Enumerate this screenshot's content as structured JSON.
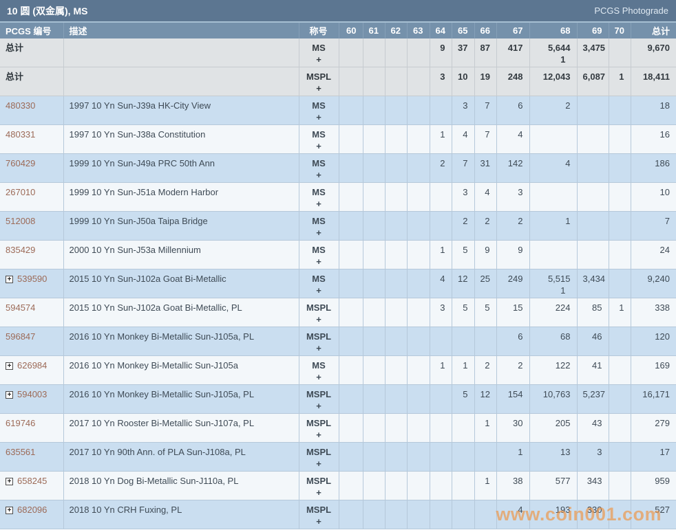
{
  "title_bar": {
    "title": "10 圆 (双金属), MS",
    "right_label": "PCGS Photograde"
  },
  "icons": {
    "expand_plus": "+"
  },
  "watermark": "www.coin001.com",
  "table": {
    "headers": {
      "pcgs_no": "PCGS 编号",
      "description": "描述",
      "designation": "称号",
      "grades": [
        "60",
        "61",
        "62",
        "63",
        "64",
        "65",
        "66",
        "67",
        "68",
        "69",
        "70"
      ],
      "total": "总计"
    },
    "rows": [
      {
        "pcgs_no": "总计",
        "is_total": true,
        "expandable": false,
        "row_style": "row-total",
        "description": "",
        "designation": "MS",
        "designation_plus": "+",
        "grades": [
          "",
          "",
          "",
          "",
          "9",
          "37",
          "87",
          "417",
          "5,644",
          "3,475",
          ""
        ],
        "plus_grades": [
          "",
          "",
          "",
          "",
          "",
          "",
          "",
          "",
          "1",
          "",
          ""
        ],
        "total": "9,670"
      },
      {
        "pcgs_no": "总计",
        "is_total": true,
        "expandable": false,
        "row_style": "row-total",
        "description": "",
        "designation": "MSPL",
        "designation_plus": "+",
        "grades": [
          "",
          "",
          "",
          "",
          "3",
          "10",
          "19",
          "248",
          "12,043",
          "6,087",
          "1"
        ],
        "plus_grades": [
          "",
          "",
          "",
          "",
          "",
          "",
          "",
          "",
          "",
          "",
          ""
        ],
        "total": "18,411"
      },
      {
        "pcgs_no": "480330",
        "is_total": false,
        "expandable": false,
        "row_style": "row-blue",
        "description": "1997 10 Yn Sun-J39a HK-City View",
        "designation": "MS",
        "designation_plus": "+",
        "grades": [
          "",
          "",
          "",
          "",
          "",
          "3",
          "7",
          "6",
          "2",
          "",
          ""
        ],
        "plus_grades": [
          "",
          "",
          "",
          "",
          "",
          "",
          "",
          "",
          "",
          "",
          ""
        ],
        "total": "18"
      },
      {
        "pcgs_no": "480331",
        "is_total": false,
        "expandable": false,
        "row_style": "row-white",
        "description": "1997 10 Yn Sun-J38a Constitution",
        "designation": "MS",
        "designation_plus": "+",
        "grades": [
          "",
          "",
          "",
          "",
          "1",
          "4",
          "7",
          "4",
          "",
          "",
          ""
        ],
        "plus_grades": [
          "",
          "",
          "",
          "",
          "",
          "",
          "",
          "",
          "",
          "",
          ""
        ],
        "total": "16"
      },
      {
        "pcgs_no": "760429",
        "is_total": false,
        "expandable": false,
        "row_style": "row-blue",
        "description": "1999 10 Yn Sun-J49a PRC 50th Ann",
        "designation": "MS",
        "designation_plus": "+",
        "grades": [
          "",
          "",
          "",
          "",
          "2",
          "7",
          "31",
          "142",
          "4",
          "",
          ""
        ],
        "plus_grades": [
          "",
          "",
          "",
          "",
          "",
          "",
          "",
          "",
          "",
          "",
          ""
        ],
        "total": "186"
      },
      {
        "pcgs_no": "267010",
        "is_total": false,
        "expandable": false,
        "row_style": "row-white",
        "description": "1999 10 Yn Sun-J51a Modern Harbor",
        "designation": "MS",
        "designation_plus": "+",
        "grades": [
          "",
          "",
          "",
          "",
          "",
          "3",
          "4",
          "3",
          "",
          "",
          ""
        ],
        "plus_grades": [
          "",
          "",
          "",
          "",
          "",
          "",
          "",
          "",
          "",
          "",
          ""
        ],
        "total": "10"
      },
      {
        "pcgs_no": "512008",
        "is_total": false,
        "expandable": false,
        "row_style": "row-blue",
        "description": "1999 10 Yn Sun-J50a Taipa Bridge",
        "designation": "MS",
        "designation_plus": "+",
        "grades": [
          "",
          "",
          "",
          "",
          "",
          "2",
          "2",
          "2",
          "1",
          "",
          ""
        ],
        "plus_grades": [
          "",
          "",
          "",
          "",
          "",
          "",
          "",
          "",
          "",
          "",
          ""
        ],
        "total": "7"
      },
      {
        "pcgs_no": "835429",
        "is_total": false,
        "expandable": false,
        "row_style": "row-white",
        "description": "2000 10 Yn Sun-J53a Millennium",
        "designation": "MS",
        "designation_plus": "+",
        "grades": [
          "",
          "",
          "",
          "",
          "1",
          "5",
          "9",
          "9",
          "",
          "",
          ""
        ],
        "plus_grades": [
          "",
          "",
          "",
          "",
          "",
          "",
          "",
          "",
          "",
          "",
          ""
        ],
        "total": "24"
      },
      {
        "pcgs_no": "539590",
        "is_total": false,
        "expandable": true,
        "row_style": "row-blue",
        "description": "2015 10 Yn Sun-J102a Goat Bi-Metallic",
        "designation": "MS",
        "designation_plus": "+",
        "grades": [
          "",
          "",
          "",
          "",
          "4",
          "12",
          "25",
          "249",
          "5,515",
          "3,434",
          ""
        ],
        "plus_grades": [
          "",
          "",
          "",
          "",
          "",
          "",
          "",
          "",
          "1",
          "",
          ""
        ],
        "total": "9,240"
      },
      {
        "pcgs_no": "594574",
        "is_total": false,
        "expandable": false,
        "row_style": "row-white",
        "description": "2015 10 Yn Sun-J102a Goat Bi-Metallic, PL",
        "designation": "MSPL",
        "designation_plus": "+",
        "grades": [
          "",
          "",
          "",
          "",
          "3",
          "5",
          "5",
          "15",
          "224",
          "85",
          "1"
        ],
        "plus_grades": [
          "",
          "",
          "",
          "",
          "",
          "",
          "",
          "",
          "",
          "",
          ""
        ],
        "total": "338"
      },
      {
        "pcgs_no": "596847",
        "is_total": false,
        "expandable": false,
        "row_style": "row-blue",
        "description": "2016 10 Yn Monkey Bi-Metallic Sun-J105a, PL",
        "designation": "MSPL",
        "designation_plus": "+",
        "grades": [
          "",
          "",
          "",
          "",
          "",
          "",
          "",
          "6",
          "68",
          "46",
          ""
        ],
        "plus_grades": [
          "",
          "",
          "",
          "",
          "",
          "",
          "",
          "",
          "",
          "",
          ""
        ],
        "total": "120"
      },
      {
        "pcgs_no": "626984",
        "is_total": false,
        "expandable": true,
        "row_style": "row-white",
        "description": "2016 10 Yn Monkey Bi-Metallic Sun-J105a",
        "designation": "MS",
        "designation_plus": "+",
        "grades": [
          "",
          "",
          "",
          "",
          "1",
          "1",
          "2",
          "2",
          "122",
          "41",
          ""
        ],
        "plus_grades": [
          "",
          "",
          "",
          "",
          "",
          "",
          "",
          "",
          "",
          "",
          ""
        ],
        "total": "169"
      },
      {
        "pcgs_no": "594003",
        "is_total": false,
        "expandable": true,
        "row_style": "row-blue",
        "description": "2016 10 Yn Monkey Bi-Metallic Sun-J105a, PL",
        "designation": "MSPL",
        "designation_plus": "+",
        "grades": [
          "",
          "",
          "",
          "",
          "",
          "5",
          "12",
          "154",
          "10,763",
          "5,237",
          ""
        ],
        "plus_grades": [
          "",
          "",
          "",
          "",
          "",
          "",
          "",
          "",
          "",
          "",
          ""
        ],
        "total": "16,171"
      },
      {
        "pcgs_no": "619746",
        "is_total": false,
        "expandable": false,
        "row_style": "row-white",
        "description": "2017 10 Yn Rooster Bi-Metallic Sun-J107a, PL",
        "designation": "MSPL",
        "designation_plus": "+",
        "grades": [
          "",
          "",
          "",
          "",
          "",
          "",
          "1",
          "30",
          "205",
          "43",
          ""
        ],
        "plus_grades": [
          "",
          "",
          "",
          "",
          "",
          "",
          "",
          "",
          "",
          "",
          ""
        ],
        "total": "279"
      },
      {
        "pcgs_no": "635561",
        "is_total": false,
        "expandable": false,
        "row_style": "row-blue",
        "description": "2017 10 Yn 90th Ann. of PLA Sun-J108a, PL",
        "designation": "MSPL",
        "designation_plus": "+",
        "grades": [
          "",
          "",
          "",
          "",
          "",
          "",
          "",
          "1",
          "13",
          "3",
          ""
        ],
        "plus_grades": [
          "",
          "",
          "",
          "",
          "",
          "",
          "",
          "",
          "",
          "",
          ""
        ],
        "total": "17"
      },
      {
        "pcgs_no": "658245",
        "is_total": false,
        "expandable": true,
        "row_style": "row-white",
        "description": "2018 10 Yn Dog Bi-Metallic Sun-J110a, PL",
        "designation": "MSPL",
        "designation_plus": "+",
        "grades": [
          "",
          "",
          "",
          "",
          "",
          "",
          "1",
          "38",
          "577",
          "343",
          ""
        ],
        "plus_grades": [
          "",
          "",
          "",
          "",
          "",
          "",
          "",
          "",
          "",
          "",
          ""
        ],
        "total": "959"
      },
      {
        "pcgs_no": "682096",
        "is_total": false,
        "expandable": true,
        "row_style": "row-blue",
        "description": "2018 10 Yn CRH Fuxing, PL",
        "designation": "MSPL",
        "designation_plus": "+",
        "grades": [
          "",
          "",
          "",
          "",
          "",
          "",
          "",
          "4",
          "193",
          "330",
          ""
        ],
        "plus_grades": [
          "",
          "",
          "",
          "",
          "",
          "",
          "",
          "",
          "",
          "",
          ""
        ],
        "total": "527"
      }
    ]
  }
}
